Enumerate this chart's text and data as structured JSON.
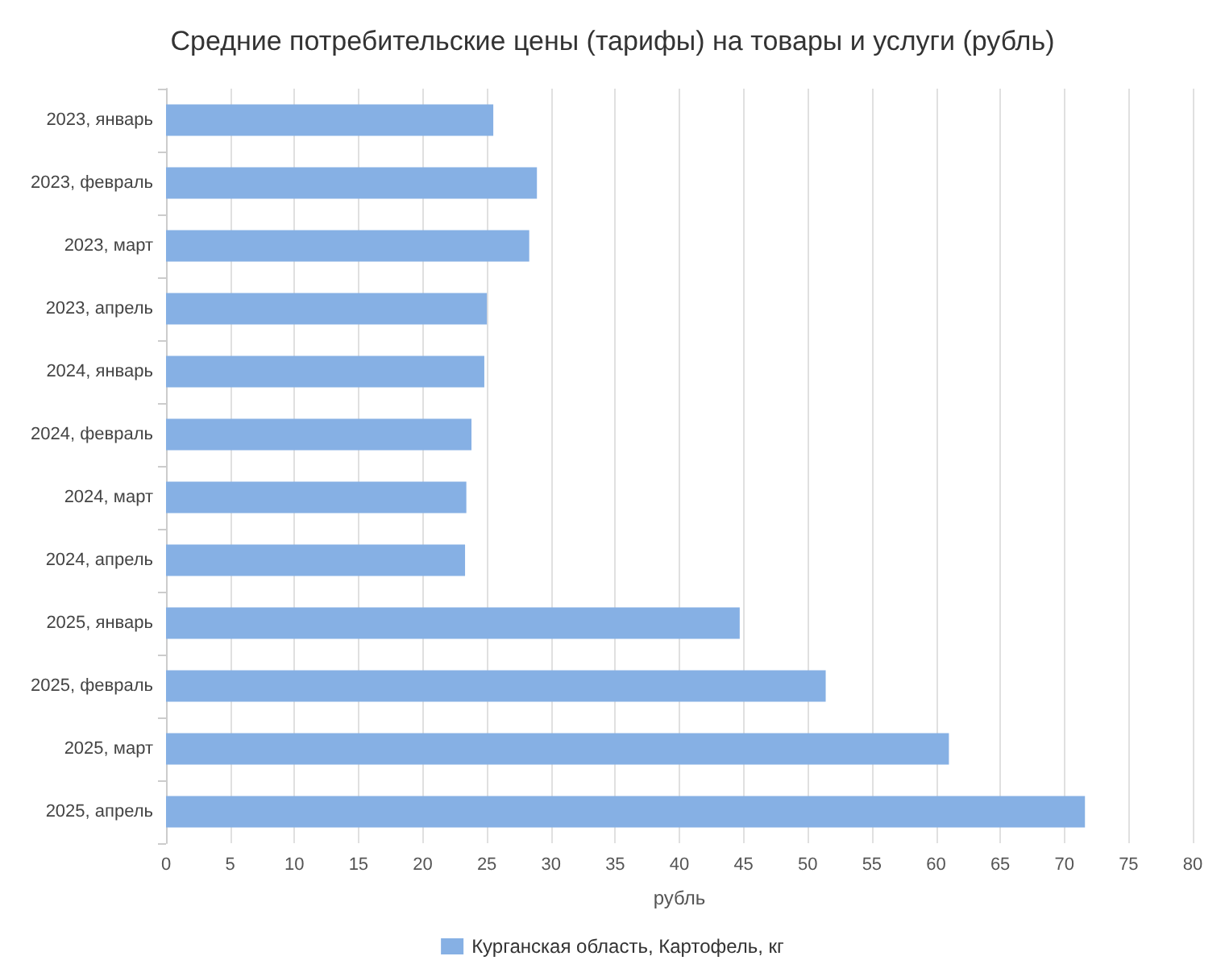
{
  "chart_data": {
    "type": "bar",
    "orientation": "horizontal",
    "title": "Средние потребительские цены (тарифы) на товары и услуги (рубль)",
    "xlabel": "рубль",
    "categories": [
      "2023, январь",
      "2023, февраль",
      "2023, март",
      "2023, апрель",
      "2024, январь",
      "2024, февраль",
      "2024, март",
      "2024, апрель",
      "2025, январь",
      "2025, февраль",
      "2025, март",
      "2025, апрель"
    ],
    "series": [
      {
        "name": "Курганская область, Картофель, кг",
        "color": "#86b0e4",
        "values": [
          25.5,
          28.9,
          28.3,
          25.0,
          24.8,
          23.8,
          23.4,
          23.3,
          44.7,
          51.4,
          61.0,
          71.6
        ]
      }
    ],
    "xlim": [
      0,
      80
    ],
    "xticks": [
      0,
      5,
      10,
      15,
      20,
      25,
      30,
      35,
      40,
      45,
      50,
      55,
      60,
      65,
      70,
      75,
      80
    ],
    "grid": "x",
    "legend": "bottom"
  }
}
